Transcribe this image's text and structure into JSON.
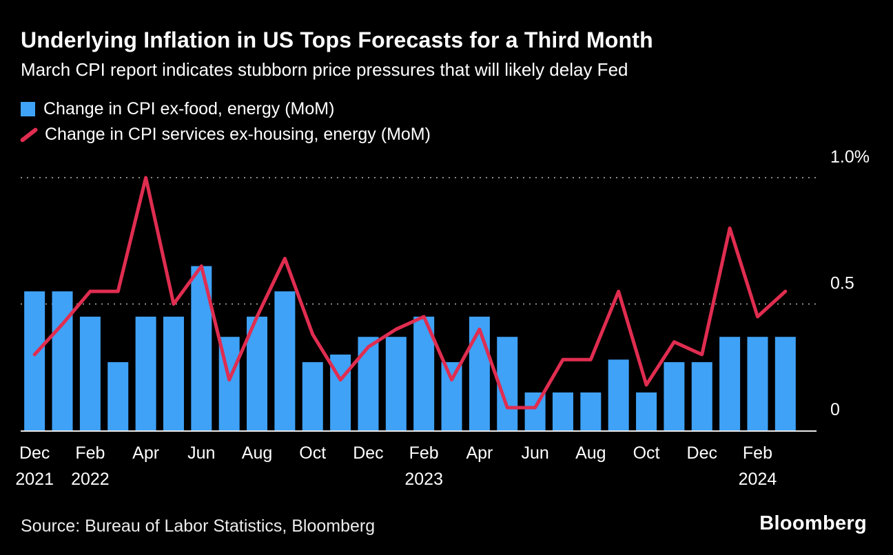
{
  "page": {
    "background": "#000000",
    "text_color": "#ffffff"
  },
  "header": {
    "title": "Underlying Inflation in US Tops Forecasts for a Third Month",
    "subtitle": "March CPI report indicates stubborn price pressures that will likely delay Fed"
  },
  "legend": [
    {
      "swatch": "bar",
      "color": "#3fa2f7",
      "label": "Change in CPI ex-food, energy (MoM)"
    },
    {
      "swatch": "line",
      "color": "#e02d50",
      "label": "Change in CPI services ex-housing, energy (MoM)"
    }
  ],
  "chart_data": {
    "type": "bar+line",
    "title": "Underlying Inflation in US Tops Forecasts for a Third Month",
    "subtitle": "March CPI report indicates stubborn price pressures that will likely delay Fed",
    "x": [
      "Dec 2021",
      "Jan 2022",
      "Feb 2022",
      "Mar 2022",
      "Apr 2022",
      "May 2022",
      "Jun 2022",
      "Jul 2022",
      "Aug 2022",
      "Sep 2022",
      "Oct 2022",
      "Nov 2022",
      "Dec 2022",
      "Jan 2023",
      "Feb 2023",
      "Mar 2023",
      "Apr 2023",
      "May 2023",
      "Jun 2023",
      "Jul 2023",
      "Aug 2023",
      "Sep 2023",
      "Oct 2023",
      "Nov 2023",
      "Dec 2023",
      "Jan 2024",
      "Feb 2024",
      "Mar 2024"
    ],
    "series": [
      {
        "name": "Change in CPI ex-food, energy (MoM)",
        "type": "bar",
        "color": "#3fa2f7",
        "values": [
          0.55,
          0.55,
          0.45,
          0.27,
          0.45,
          0.45,
          0.65,
          0.37,
          0.45,
          0.55,
          0.27,
          0.3,
          0.37,
          0.37,
          0.45,
          0.27,
          0.45,
          0.37,
          0.15,
          0.15,
          0.15,
          0.28,
          0.15,
          0.27,
          0.27,
          0.37,
          0.37,
          0.37
        ]
      },
      {
        "name": "Change in CPI services ex-housing, energy (MoM)",
        "type": "line",
        "color": "#e02d50",
        "values": [
          0.3,
          0.42,
          0.55,
          0.55,
          1.0,
          0.5,
          0.65,
          0.2,
          0.45,
          0.68,
          0.38,
          0.2,
          0.33,
          0.4,
          0.45,
          0.2,
          0.4,
          0.09,
          0.09,
          0.28,
          0.28,
          0.55,
          0.18,
          0.35,
          0.3,
          0.8,
          0.45,
          0.55
        ]
      }
    ],
    "ylim": [
      0,
      1.0
    ],
    "yticks": [
      {
        "value": 0,
        "label": "0"
      },
      {
        "value": 0.5,
        "label": "0.5"
      },
      {
        "value": 1.0,
        "label": "1.0%"
      }
    ],
    "xticks": [
      {
        "index": 0,
        "label": "Dec",
        "year": "2021"
      },
      {
        "index": 2,
        "label": "Feb",
        "year": "2022"
      },
      {
        "index": 4,
        "label": "Apr"
      },
      {
        "index": 6,
        "label": "Jun"
      },
      {
        "index": 8,
        "label": "Aug"
      },
      {
        "index": 10,
        "label": "Oct"
      },
      {
        "index": 12,
        "label": "Dec"
      },
      {
        "index": 14,
        "label": "Feb",
        "year": "2023"
      },
      {
        "index": 16,
        "label": "Apr"
      },
      {
        "index": 18,
        "label": "Jun"
      },
      {
        "index": 20,
        "label": "Aug"
      },
      {
        "index": 22,
        "label": "Oct"
      },
      {
        "index": 24,
        "label": "Dec"
      },
      {
        "index": 26,
        "label": "Feb",
        "year": "2024"
      }
    ],
    "grid": "horizontal dotted at 0.5 and 1.0, solid baseline at 0",
    "legend_position": "top-left",
    "ytick_side": "right"
  },
  "footer": {
    "source": "Source: Bureau of Labor Statistics, Bloomberg",
    "brand": "Bloomberg"
  }
}
